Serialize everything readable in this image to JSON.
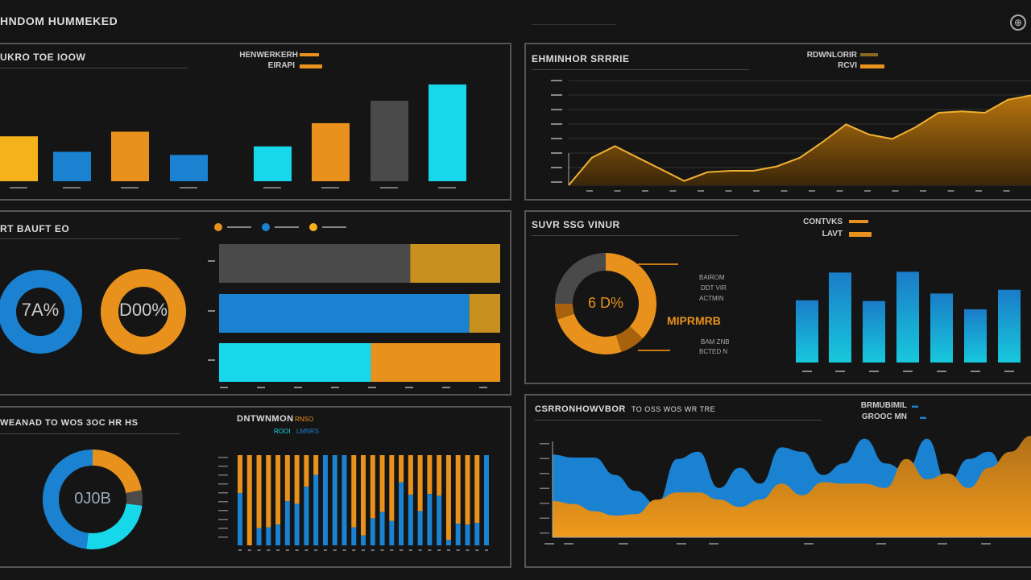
{
  "header": {
    "title": "HNDOM HUMMEKED",
    "icon": "globe-icon"
  },
  "colors": {
    "orange": "#e8911c",
    "yellow": "#f5b21a",
    "blue": "#1a82d0",
    "cyan": "#16d8ea",
    "gray": "#4a4a4a",
    "bg": "#141414"
  },
  "panel1": {
    "title": "UKRO TOE IOOW",
    "legend": [
      "HENWERKERH",
      "EIRAPI"
    ]
  },
  "panel2": {
    "title": "EHMINHOR SRRRIE",
    "legend": [
      "RDWNLORIR",
      "RCVI"
    ]
  },
  "panel3": {
    "title": "RT BAUFT EO",
    "donut_labels": [
      "7A%",
      "D00%"
    ]
  },
  "panel4": {
    "title": "SUVR SSG VINUR",
    "legend": [
      "CONTVKS",
      "LAVT"
    ],
    "donut_label": "6 D%",
    "callout": "MIPRMRB",
    "notes": [
      "BAIROM",
      "DDT VIR",
      "ACTMIN",
      "BAM ZNB",
      "BCTED N"
    ]
  },
  "panel5": {
    "title": "WEANAD TO WOS 3OC HR HS",
    "legend_title": "DNTWNMON",
    "legend_tag": "RNSO",
    "legend_items": [
      "ROOI",
      "LMNRS"
    ],
    "donut_label": "0J0B"
  },
  "panel6": {
    "title": "CSRRONHOWVBOR",
    "subtitle": "TO OSS WOS WR TRE",
    "legend": [
      "BRMUBIMIL",
      "GROOC MN"
    ]
  },
  "chart_data": [
    {
      "type": "bar",
      "colors": [
        "yellow",
        "blue",
        "orange",
        "blue",
        "cyan",
        "orange",
        "gray",
        "cyan"
      ],
      "values": [
        58,
        38,
        64,
        34,
        45,
        75,
        104,
        125
      ],
      "ylim": [
        0,
        130
      ]
    },
    {
      "type": "area",
      "values": [
        0,
        1.9,
        2.7,
        1.9,
        1.1,
        0.3,
        0.9,
        1.0,
        1.0,
        1.3,
        1.9,
        3.0,
        4.2,
        3.5,
        3.2,
        4.0,
        5.0,
        5.1,
        5.0,
        5.9,
        6.2
      ],
      "ylim": [
        0,
        7
      ],
      "grid": true
    },
    {
      "type": "pie",
      "donut": true,
      "slices": [
        {
          "color": "blue",
          "value": 1
        }
      ]
    },
    {
      "type": "pie",
      "donut": true,
      "slices": [
        {
          "color": "orange",
          "value": 1
        }
      ]
    },
    {
      "type": "bar",
      "orientation": "horizontal",
      "stacked": true,
      "rows": [
        [
          {
            "color": "gray",
            "value": 0.68
          },
          {
            "color": "gold",
            "value": 0.32
          }
        ],
        [
          {
            "color": "blue",
            "value": 0.89
          },
          {
            "color": "gold",
            "value": 0.11
          }
        ],
        [
          {
            "color": "cyan",
            "value": 0.54
          },
          {
            "color": "orange",
            "value": 0.46
          }
        ]
      ],
      "legend_colors": [
        "orange",
        "blue",
        "yellow"
      ]
    },
    {
      "type": "pie",
      "donut": true,
      "slices": [
        {
          "color": "orange",
          "value": 0.37
        },
        {
          "color": "darkorange",
          "value": 0.08
        },
        {
          "color": "orange",
          "value": 0.25
        },
        {
          "color": "darkorange",
          "value": 0.05
        },
        {
          "color": "gray",
          "value": 0.25
        }
      ]
    },
    {
      "type": "bar",
      "values": [
        83,
        120,
        82,
        121,
        92,
        71,
        97
      ],
      "ylim": [
        0,
        130
      ]
    },
    {
      "type": "pie",
      "donut": true,
      "slices": [
        {
          "color": "orange",
          "value": 0.22
        },
        {
          "color": "gray",
          "value": 0.05
        },
        {
          "color": "cyan",
          "value": 0.25
        },
        {
          "color": "blue",
          "value": 0.48
        }
      ]
    },
    {
      "type": "bar",
      "stacked": true,
      "series": [
        {
          "color": "blue",
          "values": [
            0.58,
            0,
            0.19,
            0.2,
            0.23,
            0.49,
            0.46,
            0.65,
            0.78,
            1,
            1,
            1,
            0.2,
            0.11,
            0.3,
            0.37,
            0.27,
            0.7,
            0.56,
            0.38,
            0.57,
            0.55,
            0.06,
            0.24,
            0.23,
            0.25,
            1
          ]
        },
        {
          "color": "orange",
          "values": "remainder"
        }
      ],
      "ylim": [
        0,
        1
      ]
    },
    {
      "type": "area",
      "series": [
        {
          "color": "blue",
          "values": [
            5.7,
            5.5,
            5.5,
            4.3,
            3.2,
            2.3,
            5.4,
            5.9,
            3.4,
            4.8,
            3.7,
            6.2,
            5.9,
            4.3,
            5.1,
            6.8,
            5.1,
            4.6,
            6.8,
            3.7,
            5.4,
            5.9,
            3.7,
            6.8
          ]
        },
        {
          "color": "orange",
          "values": [
            2.5,
            2.3,
            1.8,
            1.5,
            1.6,
            2.6,
            3.1,
            3.1,
            2.6,
            2.1,
            2.6,
            3.7,
            2.9,
            3.8,
            3.7,
            3.7,
            3.4,
            5.4,
            4.0,
            4.4,
            3.4,
            4.8,
            5.9,
            7.0
          ]
        }
      ],
      "ylim": [
        0,
        7
      ]
    }
  ]
}
